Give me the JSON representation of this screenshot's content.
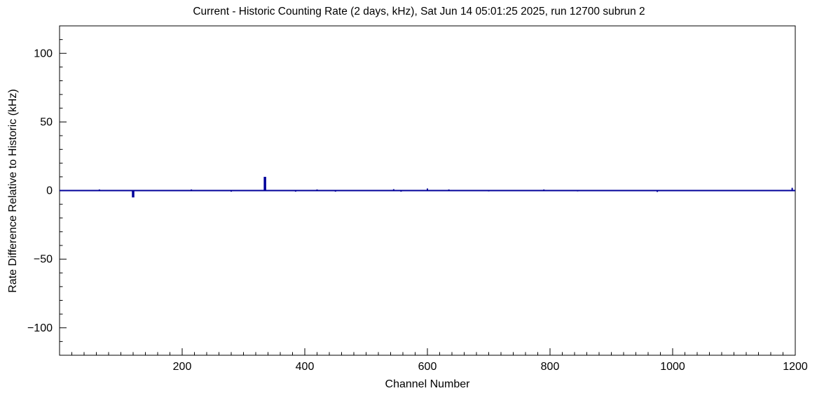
{
  "chart_data": {
    "type": "line",
    "title": "Current - Historic Counting Rate (2 days, kHz), Sat Jun 14 05:01:25 2025, run 12700 subrun 2",
    "xlabel": "Channel Number",
    "ylabel": "Rate Difference Relative to Historic (kHz)",
    "xlim": [
      0,
      1200
    ],
    "ylim": [
      -120,
      120
    ],
    "xticks": [
      200,
      400,
      600,
      800,
      1000,
      1200
    ],
    "yticks": [
      -100,
      -50,
      0,
      50,
      100
    ],
    "x_minor_step": 20,
    "y_minor_step": 10,
    "grid": false,
    "legend": false,
    "line_color": "#000099",
    "frame_color": "#000000",
    "baseline": 0,
    "spikes": [
      {
        "x": 65,
        "y": 0.8
      },
      {
        "x": 120,
        "y": -5
      },
      {
        "x": 215,
        "y": 0.8
      },
      {
        "x": 280,
        "y": -0.8
      },
      {
        "x": 335,
        "y": 10
      },
      {
        "x": 385,
        "y": -0.8
      },
      {
        "x": 420,
        "y": 0.8
      },
      {
        "x": 450,
        "y": -0.8
      },
      {
        "x": 545,
        "y": 1
      },
      {
        "x": 557,
        "y": -0.8
      },
      {
        "x": 600,
        "y": 1.5
      },
      {
        "x": 635,
        "y": 0.8
      },
      {
        "x": 700,
        "y": -0.6
      },
      {
        "x": 790,
        "y": 0.8
      },
      {
        "x": 845,
        "y": -0.6
      },
      {
        "x": 975,
        "y": -1
      },
      {
        "x": 1195,
        "y": 2
      }
    ]
  }
}
